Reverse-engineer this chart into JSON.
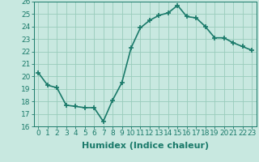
{
  "x": [
    0,
    1,
    2,
    3,
    4,
    5,
    6,
    7,
    8,
    9,
    10,
    11,
    12,
    13,
    14,
    15,
    16,
    17,
    18,
    19,
    20,
    21,
    22,
    23
  ],
  "y": [
    20.3,
    19.3,
    19.1,
    17.7,
    17.6,
    17.5,
    17.5,
    16.4,
    18.1,
    19.5,
    22.3,
    23.9,
    24.5,
    24.9,
    25.1,
    25.7,
    24.8,
    24.7,
    24.0,
    23.1,
    23.1,
    22.7,
    22.4,
    22.1
  ],
  "line_color": "#1a7a6a",
  "marker": "+",
  "marker_size": 4,
  "linewidth": 1.2,
  "bg_color": "#c8e8e0",
  "grid_color": "#99ccbb",
  "xlabel": "Humidex (Indice chaleur)",
  "xlim": [
    -0.5,
    23.5
  ],
  "ylim": [
    16,
    26
  ],
  "yticks": [
    16,
    17,
    18,
    19,
    20,
    21,
    22,
    23,
    24,
    25,
    26
  ],
  "xticks": [
    0,
    1,
    2,
    3,
    4,
    5,
    6,
    7,
    8,
    9,
    10,
    11,
    12,
    13,
    14,
    15,
    16,
    17,
    18,
    19,
    20,
    21,
    22,
    23
  ],
  "tick_color": "#1a7a6a",
  "tick_fontsize": 6.5,
  "xlabel_fontsize": 8,
  "markeredgewidth": 1.2
}
